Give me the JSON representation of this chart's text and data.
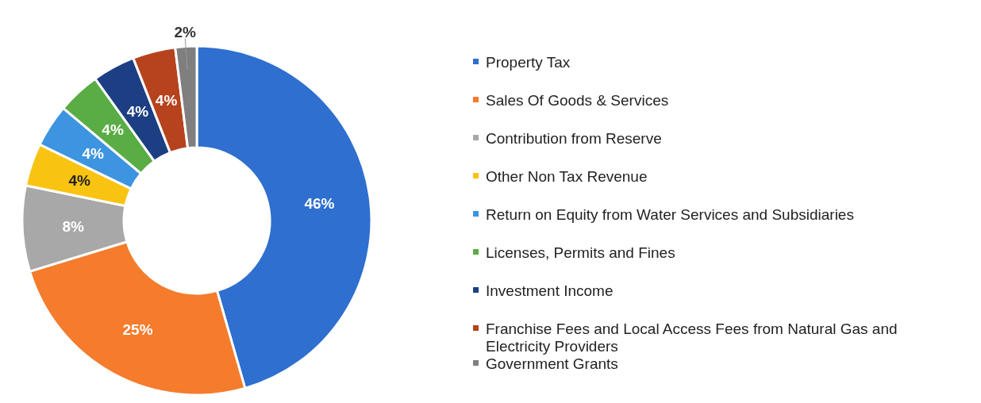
{
  "chart_data": {
    "type": "donut",
    "categories": [
      "Property Tax",
      "Sales Of Goods & Services",
      "Contribution from Reserve",
      "Other Non Tax Revenue",
      "Return on Equity from Water Services and Subsidiaries",
      "Licenses, Permits and Fines",
      "Investment Income",
      "Franchise Fees and Local Access Fees from Natural Gas and Electricity Providers",
      "Government Grants"
    ],
    "values": [
      46,
      25,
      8,
      4,
      4,
      4,
      4,
      4,
      2
    ],
    "colors": [
      "#2e6fcf",
      "#f47c2c",
      "#a8a8a8",
      "#f9c312",
      "#3d94e0",
      "#5aac44",
      "#1b3f82",
      "#b6431d",
      "#7f7f7f"
    ],
    "value_labels": [
      "46%",
      "25%",
      "8%",
      "4%",
      "4%",
      "4%",
      "4%",
      "4%",
      "2%"
    ],
    "legend": "right"
  }
}
